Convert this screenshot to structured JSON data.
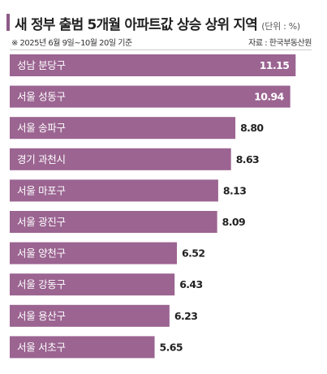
{
  "header": {
    "title": "새 정부 출범 5개월 아파트값 상승 상위 지역",
    "unit": "(단위 : %)",
    "note": "※ 2025년 6월 9일~10월 20일 기준",
    "source": "자료 : 한국부동산원"
  },
  "colors": {
    "bar": "#9b6491",
    "accent": "#8e5a87",
    "value_inside": "#ffffff",
    "value_outside": "#222222"
  },
  "chart_data": {
    "type": "bar",
    "orientation": "horizontal",
    "title": "새 정부 출범 5개월 아파트값 상승 상위 지역",
    "unit": "%",
    "categories": [
      "성남 분당구",
      "서울 성동구",
      "서울 송파구",
      "경기 과천시",
      "서울 마포구",
      "서울 광진구",
      "서울 양천구",
      "서울 강동구",
      "서울 용산구",
      "서울 서초구"
    ],
    "values": [
      11.15,
      10.94,
      8.8,
      8.63,
      8.13,
      8.09,
      6.52,
      6.43,
      6.23,
      5.65
    ],
    "value_labels": [
      "11.15",
      "10.94",
      "8.80",
      "8.63",
      "8.13",
      "8.09",
      "6.52",
      "6.43",
      "6.23",
      "5.65"
    ]
  }
}
